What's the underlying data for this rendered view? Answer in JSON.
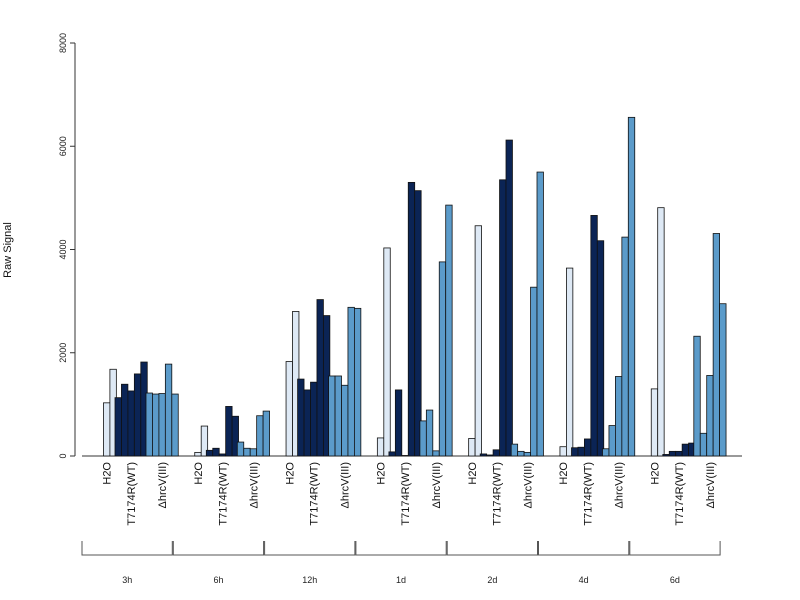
{
  "chart_data": {
    "type": "bar",
    "ylabel": "Raw Signal",
    "ylim": [
      0,
      8000
    ],
    "yticks": [
      "0",
      "2000",
      "4000",
      "6000",
      "8000"
    ],
    "grid": false,
    "legend": "none",
    "colors": {
      "H2O": "#dee9f5",
      "T7174R(WT)": "#0b2455",
      "ΔhrcV(III)": "#5b9bca"
    },
    "groups": [
      {
        "timepoint": "3h",
        "conditions": [
          {
            "name": "H2O",
            "values": [
              0,
              1030,
              1680
            ]
          },
          {
            "name": "T7174R(WT)",
            "values": [
              1130,
              1390,
              1260,
              1590,
              1820
            ]
          },
          {
            "name": "ΔhrcV(III)",
            "values": [
              1220,
              1200,
              1210,
              1780,
              1200
            ]
          }
        ]
      },
      {
        "timepoint": "6h",
        "conditions": [
          {
            "name": "H2O",
            "values": [
              0,
              70,
              580
            ]
          },
          {
            "name": "T7174R(WT)",
            "values": [
              110,
              150,
              40,
              960,
              770
            ]
          },
          {
            "name": "ΔhrcV(III)",
            "values": [
              270,
              150,
              140,
              780,
              870
            ]
          }
        ]
      },
      {
        "timepoint": "12h",
        "conditions": [
          {
            "name": "H2O",
            "values": [
              0,
              1830,
              2800
            ]
          },
          {
            "name": "T7174R(WT)",
            "values": [
              1490,
              1280,
              1430,
              3030,
              2720
            ]
          },
          {
            "name": "ΔhrcV(III)",
            "values": [
              1550,
              1550,
              1370,
              2880,
              2860
            ]
          }
        ]
      },
      {
        "timepoint": "1d",
        "conditions": [
          {
            "name": "H2O",
            "values": [
              0,
              350,
              4030
            ]
          },
          {
            "name": "T7174R(WT)",
            "values": [
              80,
              1280,
              10,
              5300,
              5140
            ]
          },
          {
            "name": "ΔhrcV(III)",
            "values": [
              680,
              890,
              100,
              3760,
              4860
            ]
          }
        ]
      },
      {
        "timepoint": "2d",
        "conditions": [
          {
            "name": "H2O",
            "values": [
              0,
              340,
              4460
            ]
          },
          {
            "name": "T7174R(WT)",
            "values": [
              40,
              20,
              120,
              5350,
              6120
            ]
          },
          {
            "name": "ΔhrcV(III)",
            "values": [
              230,
              90,
              70,
              3270,
              5500
            ]
          }
        ]
      },
      {
        "timepoint": "4d",
        "conditions": [
          {
            "name": "H2O",
            "values": [
              0,
              180,
              3640
            ]
          },
          {
            "name": "T7174R(WT)",
            "values": [
              160,
              170,
              330,
              4660,
              4170
            ]
          },
          {
            "name": "ΔhrcV(III)",
            "values": [
              140,
              590,
              1540,
              4240,
              6560
            ]
          }
        ]
      },
      {
        "timepoint": "6d",
        "conditions": [
          {
            "name": "H2O",
            "values": [
              0,
              1300,
              4810
            ]
          },
          {
            "name": "T7174R(WT)",
            "values": [
              30,
              90,
              90,
              230,
              250
            ]
          },
          {
            "name": "ΔhrcV(III)",
            "values": [
              2320,
              440,
              1560,
              4310,
              2950
            ]
          }
        ]
      }
    ]
  }
}
